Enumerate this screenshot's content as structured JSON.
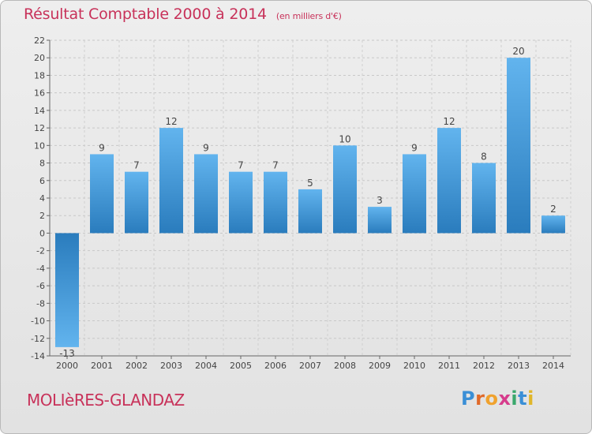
{
  "title": "Résultat Comptable 2000 à 2014",
  "unit": "(en milliers d'€)",
  "commune": "MOLIèRES-GLANDAZ",
  "logo": {
    "letters": [
      {
        "char": "P",
        "color": "#3a8fd6"
      },
      {
        "char": "r",
        "color": "#e06a2a"
      },
      {
        "char": "o",
        "color": "#f0a22e"
      },
      {
        "char": "x",
        "color": "#d63c8c"
      },
      {
        "char": "i",
        "color": "#3aa86c"
      },
      {
        "char": "t",
        "color": "#3a8fd6"
      },
      {
        "char": "i",
        "color": "#e0b62a"
      }
    ]
  },
  "colors": {
    "bar_light": "#62b4ee",
    "bar_dark": "#2a7cbd",
    "title": "#c8325a"
  },
  "chart_data": {
    "type": "bar",
    "title": "Résultat Comptable 2000 à 2014",
    "categories": [
      "2000",
      "2001",
      "2002",
      "2003",
      "2004",
      "2005",
      "2006",
      "2007",
      "2008",
      "2009",
      "2010",
      "2011",
      "2012",
      "2013",
      "2014"
    ],
    "values": [
      -13,
      9,
      7,
      12,
      9,
      7,
      7,
      5,
      10,
      3,
      9,
      12,
      8,
      20,
      2
    ],
    "ylim": [
      -14,
      22
    ],
    "yticks": [
      -14,
      -12,
      -10,
      -8,
      -6,
      -4,
      -2,
      0,
      2,
      4,
      6,
      8,
      10,
      12,
      14,
      16,
      18,
      20,
      22
    ],
    "grid": true,
    "xlabel": "",
    "ylabel": ""
  }
}
